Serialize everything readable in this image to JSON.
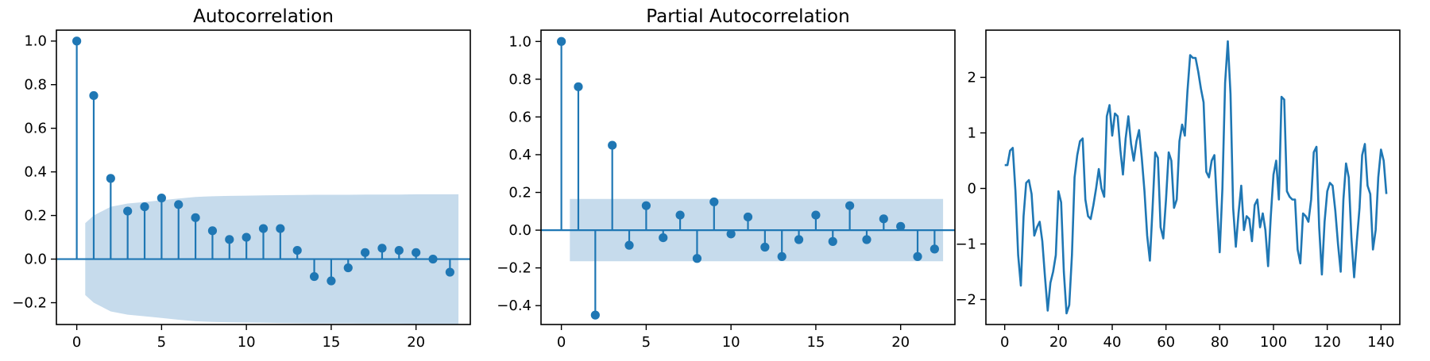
{
  "colors": {
    "accent": "#1f77b4",
    "band": "#c6dbec",
    "axes": "#000000"
  },
  "chart_data": [
    {
      "type": "stem",
      "title": "Autocorrelation",
      "xlabel": "",
      "ylabel": "",
      "xlim": [
        -1.2,
        23.2
      ],
      "ylim": [
        -0.3,
        1.05
      ],
      "xticks": [
        0,
        5,
        10,
        15,
        20
      ],
      "yticks": [
        -0.2,
        0.0,
        0.2,
        0.4,
        0.6,
        0.8,
        1.0
      ],
      "xtick_labels": [
        "0",
        "5",
        "10",
        "15",
        "20"
      ],
      "ytick_labels": [
        "−0.2",
        "0.0",
        "0.2",
        "0.4",
        "0.6",
        "0.8",
        "1.0"
      ],
      "lags": [
        0,
        1,
        2,
        3,
        4,
        5,
        6,
        7,
        8,
        9,
        10,
        11,
        12,
        13,
        14,
        15,
        16,
        17,
        18,
        19,
        20,
        21,
        22
      ],
      "values": [
        1.0,
        0.75,
        0.37,
        0.22,
        0.24,
        0.28,
        0.25,
        0.19,
        0.13,
        0.09,
        0.1,
        0.14,
        0.14,
        0.04,
        -0.08,
        -0.1,
        -0.04,
        0.03,
        0.05,
        0.04,
        0.03,
        0.0,
        -0.06
      ],
      "confidence_band": {
        "x": [
          0.5,
          1,
          2,
          3,
          4,
          5,
          6,
          7,
          8,
          9,
          10,
          11,
          12,
          13,
          14,
          15,
          16,
          17,
          18,
          19,
          20,
          21,
          22,
          22.5
        ],
        "upper": [
          0.165,
          0.2,
          0.24,
          0.255,
          0.262,
          0.27,
          0.278,
          0.285,
          0.288,
          0.29,
          0.291,
          0.292,
          0.293,
          0.294,
          0.295,
          0.295,
          0.295,
          0.296,
          0.296,
          0.296,
          0.297,
          0.297,
          0.297,
          0.297
        ],
        "lower": [
          -0.165,
          -0.2,
          -0.24,
          -0.255,
          -0.262,
          -0.27,
          -0.278,
          -0.285,
          -0.288,
          -0.29,
          -0.291,
          -0.292,
          -0.293,
          -0.294,
          -0.295,
          -0.295,
          -0.295,
          -0.296,
          -0.296,
          -0.296,
          -0.297,
          -0.297,
          -0.297,
          -0.297
        ]
      },
      "zero_line": true,
      "grid": false
    },
    {
      "type": "stem",
      "title": "Partial Autocorrelation",
      "xlabel": "",
      "ylabel": "",
      "xlim": [
        -1.2,
        23.2
      ],
      "ylim": [
        -0.5,
        1.06
      ],
      "xticks": [
        0,
        5,
        10,
        15,
        20
      ],
      "yticks": [
        -0.4,
        -0.2,
        0.0,
        0.2,
        0.4,
        0.6,
        0.8,
        1.0
      ],
      "xtick_labels": [
        "0",
        "5",
        "10",
        "15",
        "20"
      ],
      "ytick_labels": [
        "−0.4",
        "−0.2",
        "0.0",
        "0.2",
        "0.4",
        "0.6",
        "0.8",
        "1.0"
      ],
      "lags": [
        0,
        1,
        2,
        3,
        4,
        5,
        6,
        7,
        8,
        9,
        10,
        11,
        12,
        13,
        14,
        15,
        16,
        17,
        18,
        19,
        20,
        21,
        22
      ],
      "values": [
        1.0,
        0.76,
        -0.45,
        0.45,
        -0.08,
        0.13,
        -0.04,
        0.08,
        -0.15,
        0.15,
        -0.02,
        0.07,
        -0.09,
        -0.14,
        -0.05,
        0.08,
        -0.06,
        0.13,
        -0.05,
        0.06,
        0.02,
        -0.14,
        -0.1
      ],
      "confidence_band": {
        "x": [
          0.5,
          22.5
        ],
        "upper": [
          0.165,
          0.165
        ],
        "lower": [
          -0.165,
          -0.165
        ]
      },
      "zero_line": true,
      "grid": false
    },
    {
      "type": "line",
      "title": "",
      "xlabel": "",
      "ylabel": "",
      "xlim": [
        -7,
        147
      ],
      "ylim": [
        -2.45,
        2.85
      ],
      "xticks": [
        0,
        20,
        40,
        60,
        80,
        100,
        120,
        140
      ],
      "yticks": [
        -2,
        -1,
        0,
        1,
        2
      ],
      "xtick_labels": [
        "0",
        "20",
        "40",
        "60",
        "80",
        "100",
        "120",
        "140"
      ],
      "ytick_labels": [
        "−2",
        "−1",
        "0",
        "1",
        "2"
      ],
      "values": [
        0.42,
        0.42,
        0.68,
        0.73,
        -0.05,
        -1.2,
        -1.75,
        -0.5,
        0.1,
        0.15,
        -0.1,
        -0.85,
        -0.7,
        -0.6,
        -0.95,
        -1.6,
        -2.2,
        -1.7,
        -1.5,
        -1.2,
        -0.05,
        -0.25,
        -1.5,
        -2.25,
        -2.1,
        -1.2,
        0.2,
        0.6,
        0.85,
        0.9,
        -0.2,
        -0.5,
        -0.55,
        -0.3,
        0.0,
        0.35,
        0.0,
        -0.15,
        1.3,
        1.5,
        0.95,
        1.35,
        1.3,
        0.7,
        0.25,
        0.9,
        1.3,
        0.8,
        0.5,
        0.85,
        1.05,
        0.55,
        -0.05,
        -0.85,
        -1.3,
        -0.35,
        0.65,
        0.55,
        -0.7,
        -0.9,
        -0.2,
        0.65,
        0.5,
        -0.35,
        -0.2,
        0.85,
        1.15,
        0.95,
        1.75,
        2.4,
        2.35,
        2.35,
        2.1,
        1.8,
        1.55,
        0.3,
        0.2,
        0.5,
        0.6,
        -0.3,
        -1.15,
        0.0,
        1.9,
        2.65,
        1.7,
        -0.35,
        -1.05,
        -0.45,
        0.05,
        -0.75,
        -0.5,
        -0.55,
        -0.95,
        -0.3,
        -0.2,
        -0.7,
        -0.45,
        -0.75,
        -1.4,
        -0.5,
        0.25,
        0.5,
        -0.2,
        1.65,
        1.6,
        -0.05,
        -0.15,
        -0.2,
        -0.2,
        -1.1,
        -1.35,
        -0.45,
        -0.5,
        -0.6,
        -0.2,
        0.65,
        0.75,
        -0.7,
        -1.55,
        -0.6,
        -0.05,
        0.1,
        0.05,
        -0.4,
        -1.0,
        -1.5,
        -0.2,
        0.45,
        0.2,
        -0.9,
        -1.6,
        -0.95,
        -0.35,
        0.6,
        0.8,
        0.05,
        -0.1,
        -1.1,
        -0.75,
        0.2,
        0.7,
        0.5,
        -0.1
      ],
      "grid": false
    }
  ]
}
